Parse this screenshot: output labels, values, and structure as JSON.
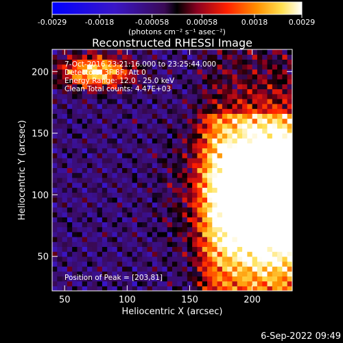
{
  "colorbar": {
    "colormap": "RHESSI signed (blue-purple-red-orange-white)",
    "tick_labels": [
      "-0.0029",
      "-0.0018",
      "-0.00058",
      "0.00058",
      "0.0018",
      "0.0029"
    ],
    "tick_values": [
      -0.0029,
      -0.0018,
      -0.00058,
      0.00058,
      0.0018,
      0.0029
    ],
    "range": [
      -0.0029,
      0.0029
    ],
    "units_label": "(photons cm⁻² s⁻¹ asec⁻²)"
  },
  "chart_data": {
    "type": "heatmap",
    "title": "Reconstructed RHESSI Image",
    "xlabel": "Heliocentric X (arcsec)",
    "ylabel": "Heliocentric Y (arcsec)",
    "xlim": [
      40,
      232
    ],
    "ylim": [
      22,
      218
    ],
    "x_ticks": [
      50,
      100,
      150,
      200
    ],
    "y_ticks": [
      50,
      100,
      150,
      200
    ],
    "x_tick_labels": [
      "50",
      "100",
      "150",
      "200"
    ],
    "y_tick_labels": [
      "50",
      "100",
      "150",
      "200"
    ],
    "annotations": [
      "7-Oct-2016 23:21:16.000 to 23:25:44.000",
      "Detectors: 3F 8F, Att 0",
      "Energy Range: 12.0 - 25.0 keV",
      "Clean    Total counts: 4.47E+03",
      "Position of Peak = [203,81]"
    ],
    "peak": [
      203,
      81
    ],
    "intensity_features": [
      {
        "region": "upper-left",
        "level": "bright",
        "center": [
          75,
          200
        ]
      },
      {
        "region": "lower-right",
        "level": "brightest",
        "center": [
          210,
          100
        ]
      }
    ],
    "background_level": "negative (purple/blue)"
  },
  "footer": {
    "date_stamp": "6-Sep-2022 09:49"
  }
}
